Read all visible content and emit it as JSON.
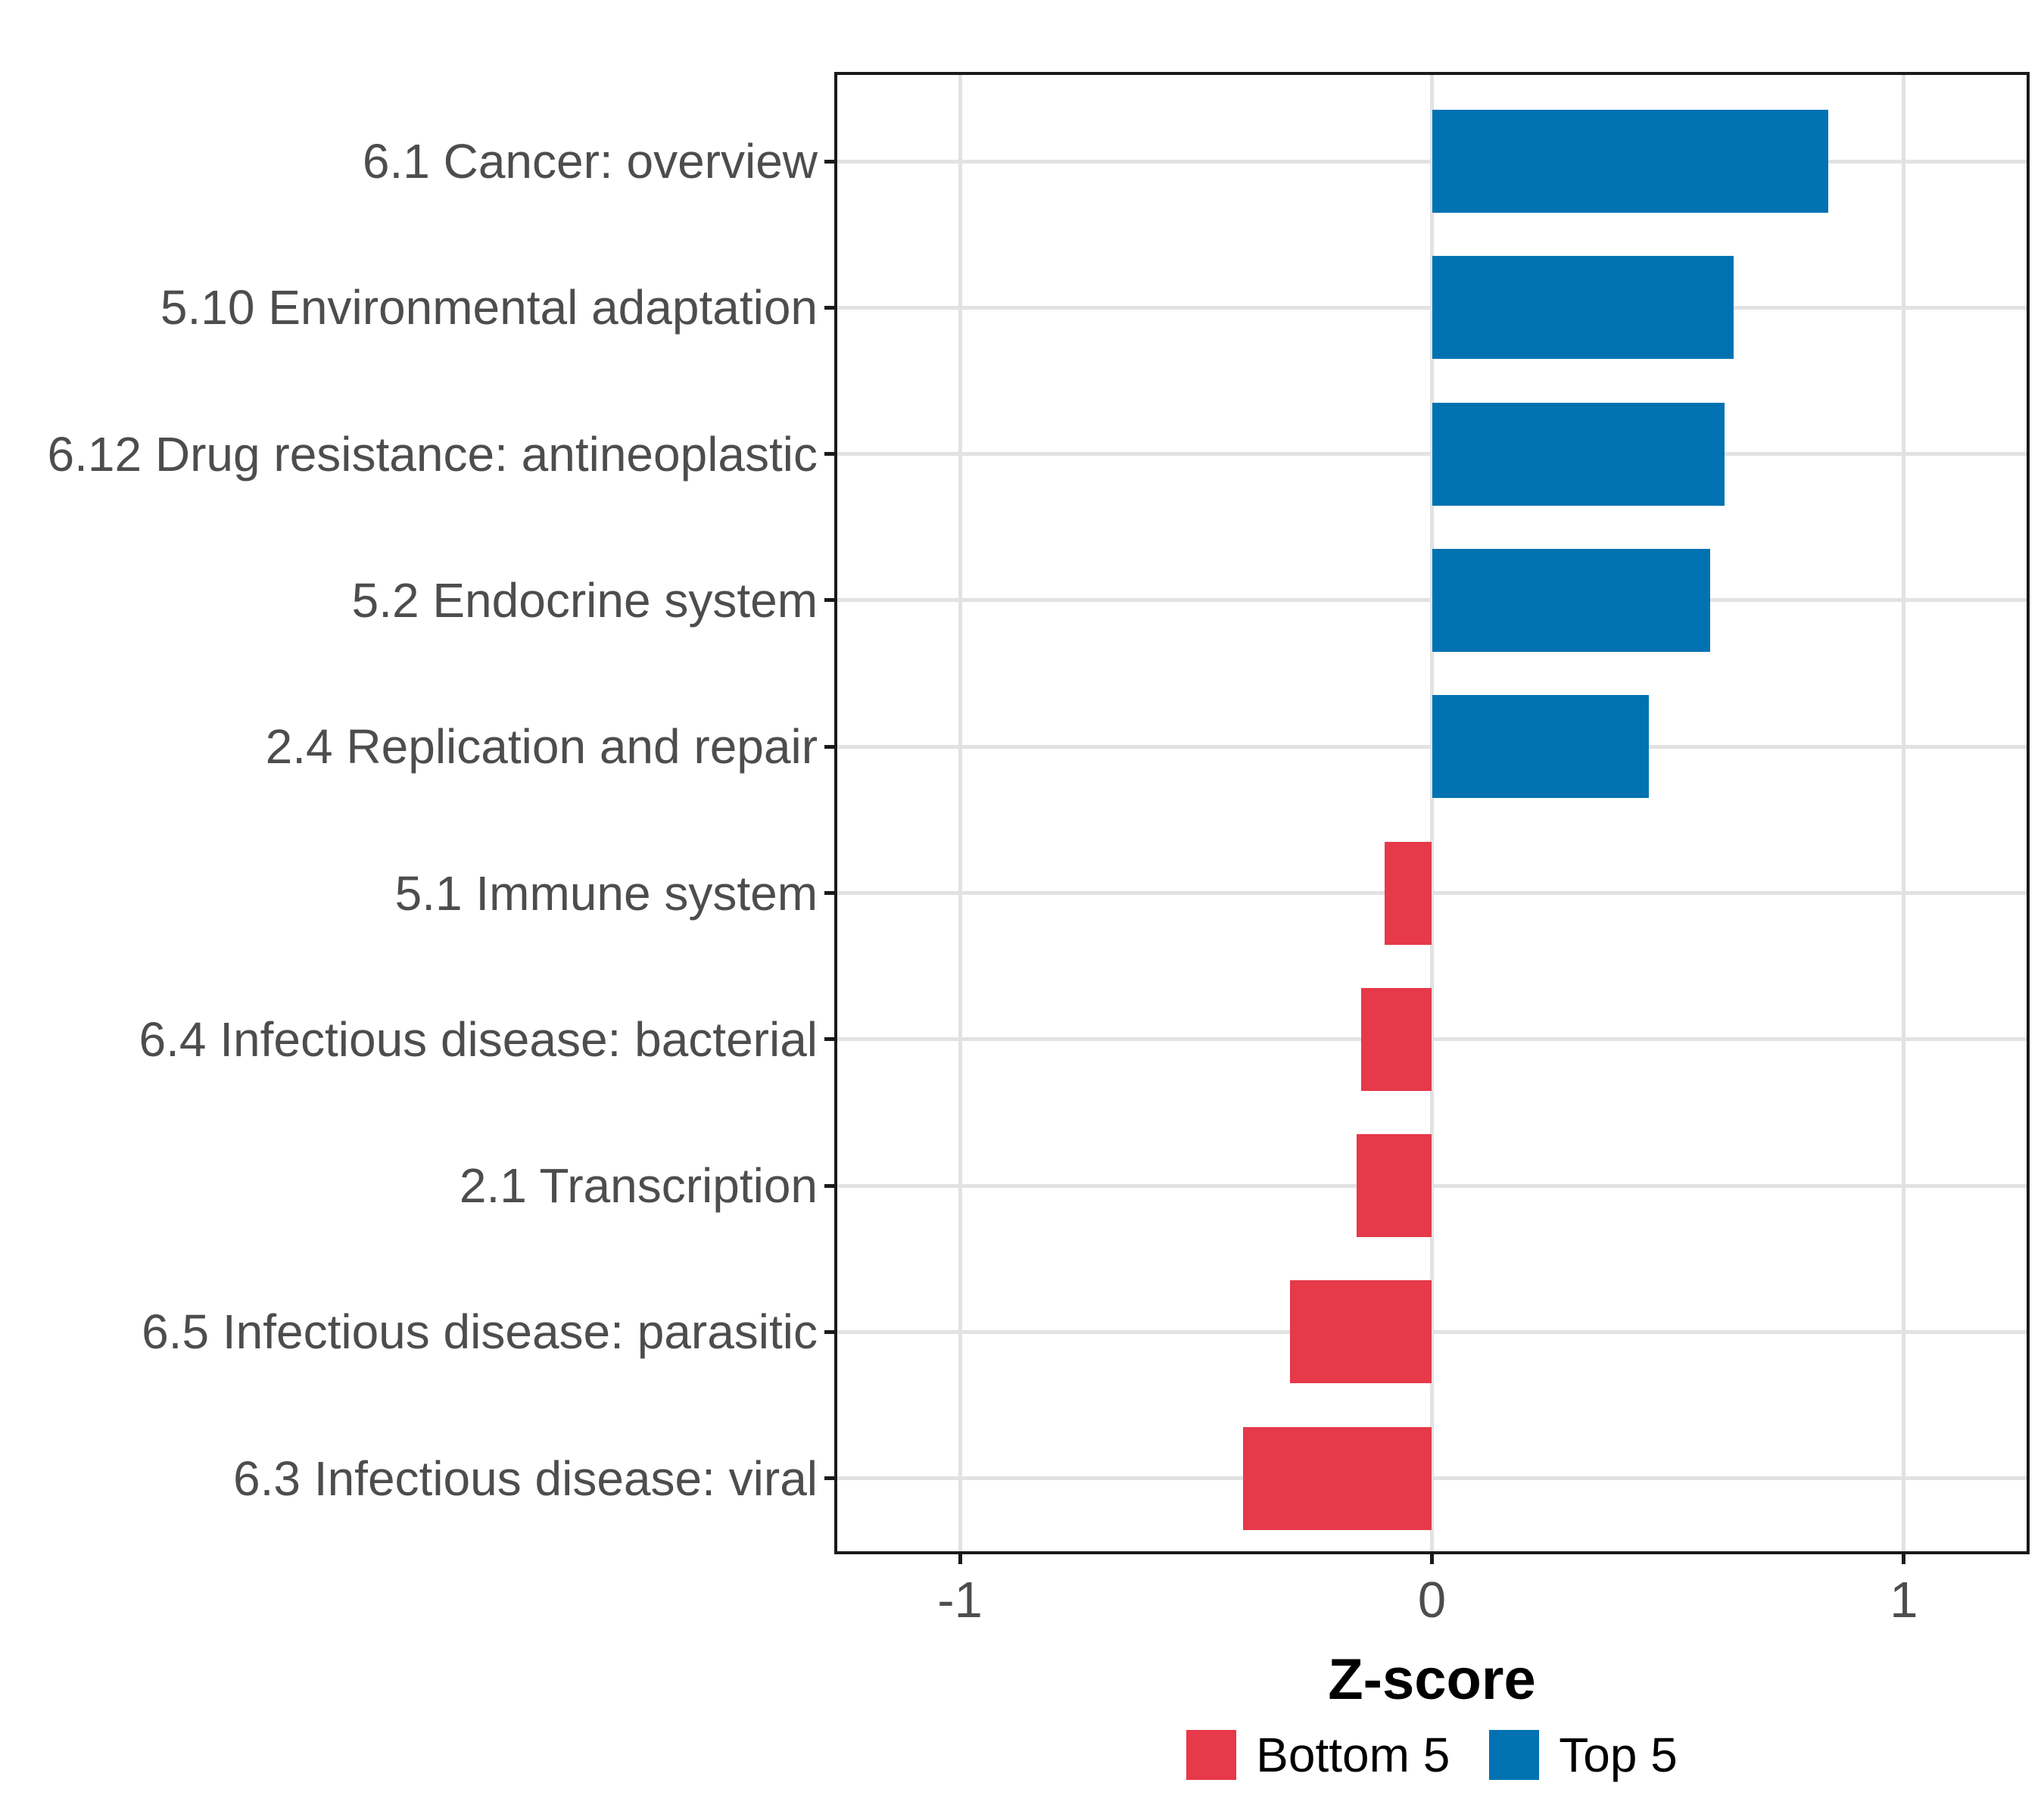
{
  "chart_data": {
    "type": "bar",
    "orientation": "horizontal",
    "title": "",
    "xlabel": "Z-score",
    "ylabel": "",
    "categories": [
      "6.1 Cancer: overview",
      "5.10 Environmental adaptation",
      "6.12 Drug resistance: antineoplastic",
      "5.2 Endocrine system",
      "2.4 Replication and repair",
      "5.1 Immune system",
      "6.4 Infectious disease: bacterial",
      "2.1 Transcription",
      "6.5 Infectious disease: parasitic",
      "6.3 Infectious disease: viral"
    ],
    "values": [
      0.84,
      0.64,
      0.62,
      0.59,
      0.46,
      -0.1,
      -0.15,
      -0.16,
      -0.3,
      -0.4
    ],
    "groups": [
      "Top 5",
      "Top 5",
      "Top 5",
      "Top 5",
      "Top 5",
      "Bottom 5",
      "Bottom 5",
      "Bottom 5",
      "Bottom 5",
      "Bottom 5"
    ],
    "x_ticks": [
      -1,
      0,
      1
    ],
    "x_tick_labels": [
      "-1",
      "0",
      "1"
    ],
    "xlim": [
      -1.26,
      1.26
    ],
    "grid": "major-only",
    "legend_position": "bottom",
    "legend": {
      "entries": [
        {
          "label": "Bottom 5",
          "color": "#E6394A"
        },
        {
          "label": "Top 5",
          "color": "#0072B2"
        }
      ]
    },
    "colors": {
      "top5_blue": "#0072B2",
      "bottom5_red": "#E6394A",
      "gridline": "#E2E2E2",
      "panel_border": "#1A1A1A",
      "axis_text": "#4D4D4D",
      "title_text": "#000000"
    }
  }
}
